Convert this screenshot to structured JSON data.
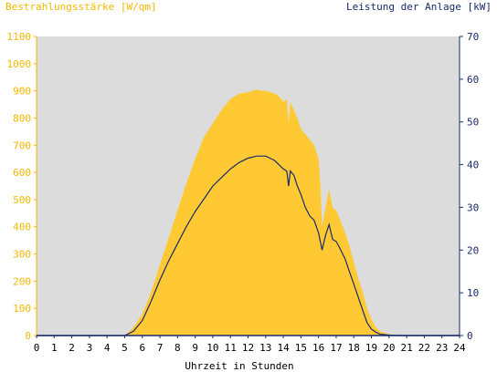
{
  "chart_data": {
    "type": "area",
    "title_left": "Bestrahlungsstärke [W/qm]",
    "title_right": "Leistung der Anlage [kW]",
    "xlabel": "Uhrzeit in Stunden",
    "x_ticks": [
      "0",
      "1",
      "2",
      "3",
      "4",
      "5",
      "6",
      "7",
      "8",
      "9",
      "10",
      "11",
      "12",
      "13",
      "14",
      "15",
      "16",
      "17",
      "18",
      "19",
      "20",
      "21",
      "22",
      "23",
      "24"
    ],
    "y_left_ticks": [
      "0",
      "100",
      "200",
      "300",
      "400",
      "500",
      "600",
      "700",
      "800",
      "900",
      "1000",
      "1100"
    ],
    "y_right_ticks": [
      "0",
      "10",
      "20",
      "30",
      "40",
      "50",
      "60",
      "70"
    ],
    "xlim": [
      0,
      24
    ],
    "ylim_left": [
      0,
      1100
    ],
    "ylim_right": [
      0,
      70
    ],
    "grid": false,
    "colors": {
      "plot_background": "#dcdcdc",
      "irradiance_fill": "#ffc933",
      "power_line": "#1a2a6c",
      "left_axis": "#f5b800",
      "right_axis": "#1a2a6c"
    },
    "series": [
      {
        "axis": "left",
        "style": "area",
        "x": [
          0,
          5,
          5.5,
          6,
          6.5,
          7,
          7.5,
          8,
          8.5,
          9,
          9.5,
          10,
          10.5,
          11,
          11.5,
          12,
          12.25,
          12.5,
          12.75,
          13,
          13.25,
          13.5,
          13.75,
          14,
          14.2,
          14.3,
          14.4,
          14.6,
          14.8,
          15,
          15.25,
          15.5,
          15.75,
          16,
          16.1,
          16.2,
          16.4,
          16.6,
          16.8,
          17,
          17.2,
          17.5,
          17.75,
          18,
          18.25,
          18.5,
          18.75,
          19,
          19.25,
          19.5,
          20,
          20.5,
          21,
          24
        ],
        "y": [
          0,
          0,
          30,
          80,
          160,
          260,
          360,
          460,
          560,
          650,
          730,
          780,
          830,
          870,
          890,
          895,
          900,
          905,
          900,
          900,
          895,
          890,
          880,
          860,
          870,
          780,
          860,
          830,
          800,
          760,
          740,
          720,
          700,
          650,
          560,
          400,
          470,
          540,
          470,
          460,
          430,
          380,
          330,
          270,
          210,
          160,
          100,
          60,
          30,
          15,
          5,
          0,
          0,
          0
        ]
      },
      {
        "axis": "right",
        "style": "line",
        "x": [
          0,
          5,
          5.5,
          6,
          6.5,
          7,
          7.5,
          8,
          8.5,
          9,
          9.5,
          10,
          10.5,
          11,
          11.5,
          12,
          12.5,
          13,
          13.25,
          13.5,
          13.75,
          14,
          14.2,
          14.3,
          14.4,
          14.6,
          14.8,
          15,
          15.25,
          15.5,
          15.75,
          16,
          16.2,
          16.4,
          16.6,
          16.8,
          17,
          17.2,
          17.5,
          17.75,
          18,
          18.25,
          18.5,
          18.75,
          19,
          19.25,
          19.5,
          20,
          20.5,
          21,
          24
        ],
        "y": [
          0,
          0,
          1,
          3.5,
          8,
          13,
          17.5,
          21.5,
          25.5,
          29,
          32,
          35,
          37,
          39,
          40.5,
          41.5,
          42,
          42,
          41.5,
          41,
          40,
          39,
          38.5,
          35,
          38.5,
          37.5,
          35,
          33,
          30,
          28,
          27,
          24,
          20,
          23.5,
          26,
          22.5,
          22,
          20.5,
          18,
          15,
          12,
          9,
          6,
          3,
          1.5,
          0.8,
          0.3,
          0.1,
          0,
          0,
          0
        ]
      }
    ]
  }
}
